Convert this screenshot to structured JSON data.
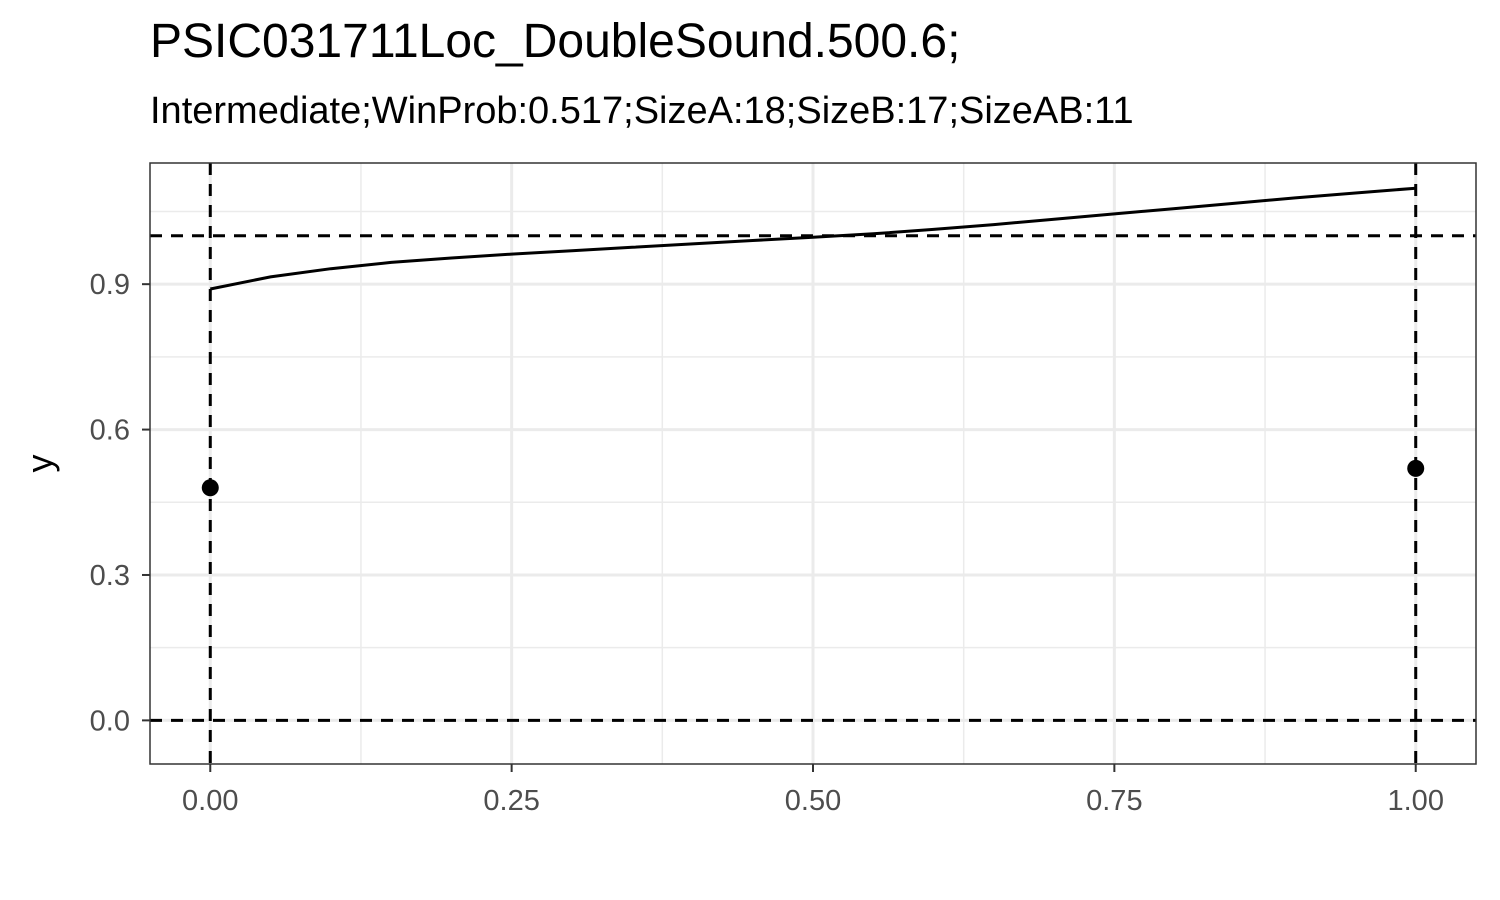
{
  "chart_data": {
    "type": "line",
    "title": "PSIC031711Loc_DoubleSound.500.6;",
    "subtitle": "Intermediate;WinProb:0.517;SizeA:18;SizeB:17;SizeAB:11",
    "xlabel": "",
    "ylabel": "y",
    "xlim": [
      -0.05,
      1.05
    ],
    "ylim": [
      -0.09,
      1.15
    ],
    "x_ticks": [
      0,
      0.25,
      0.5,
      0.75,
      1
    ],
    "x_tick_labels": [
      "0.00",
      "0.25",
      "0.50",
      "0.75",
      "1.00"
    ],
    "y_ticks": [
      0,
      0.3,
      0.6,
      0.9
    ],
    "y_tick_labels": [
      "0.0",
      "0.3",
      "0.6",
      "0.9"
    ],
    "grid": true,
    "reference_lines": {
      "horizontal": [
        0,
        1
      ],
      "vertical": [
        0,
        1
      ]
    },
    "curve": {
      "x": [
        0,
        0.05,
        0.1,
        0.15,
        0.2,
        0.25,
        0.3,
        0.35,
        0.4,
        0.45,
        0.5,
        0.55,
        0.6,
        0.65,
        0.7,
        0.75,
        0.8,
        0.85,
        0.9,
        0.95,
        1.0
      ],
      "y": [
        0.89,
        0.915,
        0.932,
        0.945,
        0.954,
        0.962,
        0.969,
        0.976,
        0.983,
        0.99,
        0.997,
        1.004,
        1.013,
        1.023,
        1.034,
        1.045,
        1.056,
        1.067,
        1.078,
        1.088,
        1.098
      ]
    },
    "points": [
      {
        "x": 0,
        "y": 0.48
      },
      {
        "x": 1,
        "y": 0.52
      }
    ]
  }
}
